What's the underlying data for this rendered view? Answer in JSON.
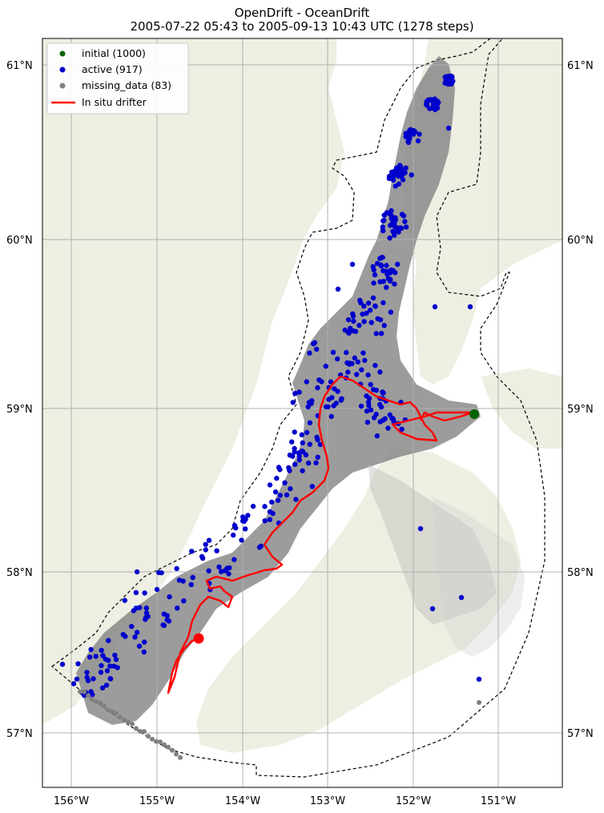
{
  "title": {
    "line1": "OpenDrift - OceanDrift",
    "line2": "2005-07-22 05:43 to 2005-09-13 10:43 UTC (1278 steps)"
  },
  "axes": {
    "lat_ticks": [
      "57°N",
      "58°N",
      "59°N",
      "60°N",
      "61°N"
    ],
    "lon_ticks": [
      "156°W",
      "155°W",
      "154°W",
      "153°W",
      "152°W",
      "151°W"
    ]
  },
  "legend": {
    "items": [
      {
        "label": "initial (1000)",
        "color": "#006400",
        "kind": "dot"
      },
      {
        "label": "active (917)",
        "color": "#0000cc",
        "kind": "dot"
      },
      {
        "label": "missing_data (83)",
        "color": "#808080",
        "kind": "dot"
      },
      {
        "label": "In situ drifter",
        "color": "#ff0000",
        "kind": "line"
      }
    ]
  },
  "colors": {
    "land": "#eeeee2",
    "sea": "#ffffff",
    "trajectory": "#808080",
    "active": "#0000cc",
    "missing": "#808080",
    "initial": "#006400",
    "drifter": "#ff0000",
    "grid": "#b0b0b0"
  },
  "counts": {
    "initial": 1000,
    "active": 917,
    "missing_data": 83,
    "steps": 1278
  }
}
